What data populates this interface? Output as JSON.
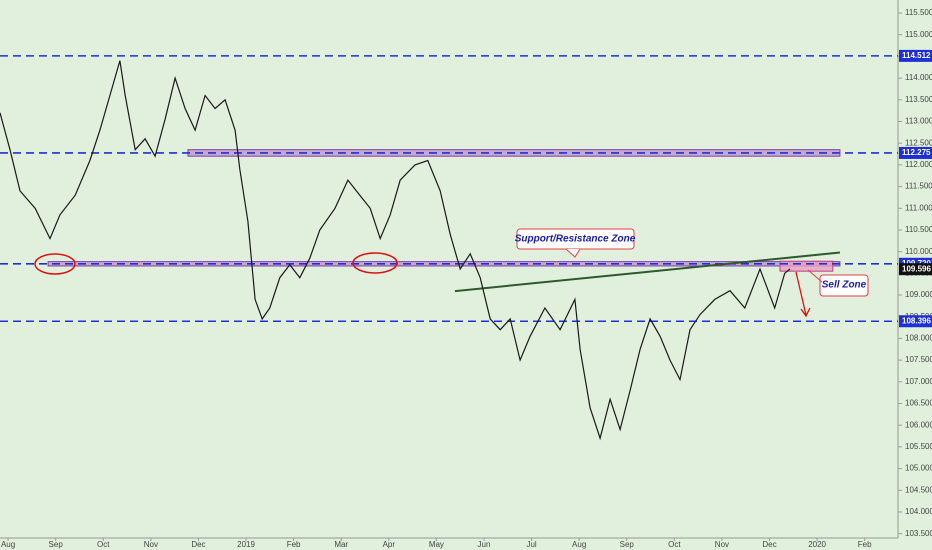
{
  "chart_data": {
    "type": "line",
    "xlim": [
      -0.17,
      18.7
    ],
    "ylim": [
      103.4,
      115.8
    ],
    "xticks": [
      {
        "value": 0,
        "label": "Aug"
      },
      {
        "value": 1,
        "label": "Sep"
      },
      {
        "value": 2,
        "label": "Oct"
      },
      {
        "value": 3,
        "label": "Nov"
      },
      {
        "value": 4,
        "label": "Dec"
      },
      {
        "value": 5,
        "label": "2019"
      },
      {
        "value": 6,
        "label": "Feb"
      },
      {
        "value": 7,
        "label": "Mar"
      },
      {
        "value": 8,
        "label": "Apr"
      },
      {
        "value": 9,
        "label": "May"
      },
      {
        "value": 10,
        "label": "Jun"
      },
      {
        "value": 11,
        "label": "Jul"
      },
      {
        "value": 12,
        "label": "Aug"
      },
      {
        "value": 13,
        "label": "Sep"
      },
      {
        "value": 14,
        "label": "Oct"
      },
      {
        "value": 15,
        "label": "Nov"
      },
      {
        "value": 16,
        "label": "Dec"
      },
      {
        "value": 17,
        "label": "2020"
      },
      {
        "value": 18,
        "label": "Feb"
      }
    ],
    "yticks": [
      {
        "value": 103.5,
        "label": "103.500"
      },
      {
        "value": 104,
        "label": "104.000"
      },
      {
        "value": 104.5,
        "label": "104.500"
      },
      {
        "value": 105,
        "label": "105.000"
      },
      {
        "value": 105.5,
        "label": "105.500"
      },
      {
        "value": 106,
        "label": "106.000"
      },
      {
        "value": 106.5,
        "label": "106.500"
      },
      {
        "value": 107,
        "label": "107.000"
      },
      {
        "value": 107.5,
        "label": "107.500"
      },
      {
        "value": 108,
        "label": "108.000"
      },
      {
        "value": 108.5,
        "label": "108.500"
      },
      {
        "value": 109,
        "label": "109.000"
      },
      {
        "value": 109.5,
        "label": "109.500"
      },
      {
        "value": 110,
        "label": "110.000"
      },
      {
        "value": 110.5,
        "label": "110.500"
      },
      {
        "value": 111,
        "label": "111.000"
      },
      {
        "value": 111.5,
        "label": "111.500"
      },
      {
        "value": 112,
        "label": "112.000"
      },
      {
        "value": 112.5,
        "label": "112.500"
      },
      {
        "value": 113,
        "label": "113.000"
      },
      {
        "value": 113.5,
        "label": "113.500"
      },
      {
        "value": 114,
        "label": "114.000"
      },
      {
        "value": 114.5,
        "label": "114.500"
      },
      {
        "value": 115,
        "label": "115.000"
      },
      {
        "value": 115.5,
        "label": "115.500"
      }
    ],
    "series": [
      {
        "color": "#1a1a1a",
        "x": [
          -0.17,
          0.04,
          0.25,
          0.57,
          0.88,
          1.09,
          1.41,
          1.72,
          1.93,
          2.14,
          2.35,
          2.46,
          2.67,
          2.88,
          3.09,
          3.3,
          3.51,
          3.72,
          3.93,
          4.14,
          4.35,
          4.56,
          4.77,
          4.87,
          5.04,
          5.19,
          5.34,
          5.5,
          5.71,
          5.92,
          6.13,
          6.34,
          6.55,
          6.87,
          7.14,
          7.39,
          7.61,
          7.82,
          8.03,
          8.24,
          8.55,
          8.82,
          9.08,
          9.29,
          9.5,
          9.71,
          9.92,
          10.13,
          10.34,
          10.55,
          10.76,
          10.97,
          11.28,
          11.6,
          11.91,
          12.02,
          12.23,
          12.44,
          12.65,
          12.86,
          13.07,
          13.28,
          13.49,
          13.7,
          13.91,
          14.12,
          14.33,
          14.54,
          14.85,
          15.17,
          15.48,
          15.8,
          16.11,
          16.32,
          16.43
        ],
        "values": [
          113.2,
          112.35,
          111.4,
          111.0,
          110.3,
          110.85,
          111.3,
          112.1,
          112.8,
          113.6,
          114.4,
          113.6,
          112.35,
          112.6,
          112.2,
          113.05,
          114.0,
          113.3,
          112.8,
          113.6,
          113.3,
          113.5,
          112.8,
          111.9,
          110.7,
          108.9,
          108.45,
          108.7,
          109.4,
          109.7,
          109.4,
          109.85,
          110.5,
          111.0,
          111.65,
          111.3,
          111.0,
          110.3,
          110.85,
          111.65,
          112.0,
          112.1,
          111.4,
          110.4,
          109.6,
          109.95,
          109.4,
          108.45,
          108.2,
          108.45,
          107.5,
          108.05,
          108.7,
          108.2,
          108.9,
          107.75,
          106.4,
          105.7,
          106.6,
          105.9,
          106.8,
          107.75,
          108.45,
          108.05,
          107.5,
          107.05,
          108.2,
          108.55,
          108.9,
          109.1,
          108.7,
          109.6,
          108.7,
          109.5,
          109.6
        ]
      }
    ],
    "levels": [
      114.512,
      112.275,
      {
        "value": 109.72,
        "label": "109.720"
      },
      108.396
    ],
    "current_price": 109.596,
    "trendline": {
      "x": [
        9.39,
        17.48
      ],
      "y": [
        109.09,
        109.98
      ]
    },
    "zones": [
      {
        "x": [
          3.78,
          17.48
        ],
        "y": [
          112.2,
          112.35
        ]
      },
      {
        "x": [
          0.84,
          17.48
        ],
        "y": [
          109.67,
          109.77
        ]
      },
      {
        "x": [
          16.22,
          17.33
        ],
        "y": [
          109.55,
          109.78
        ]
      }
    ],
    "annotations": [
      "Support/Resistance Zone",
      "Sell Zone"
    ]
  }
}
